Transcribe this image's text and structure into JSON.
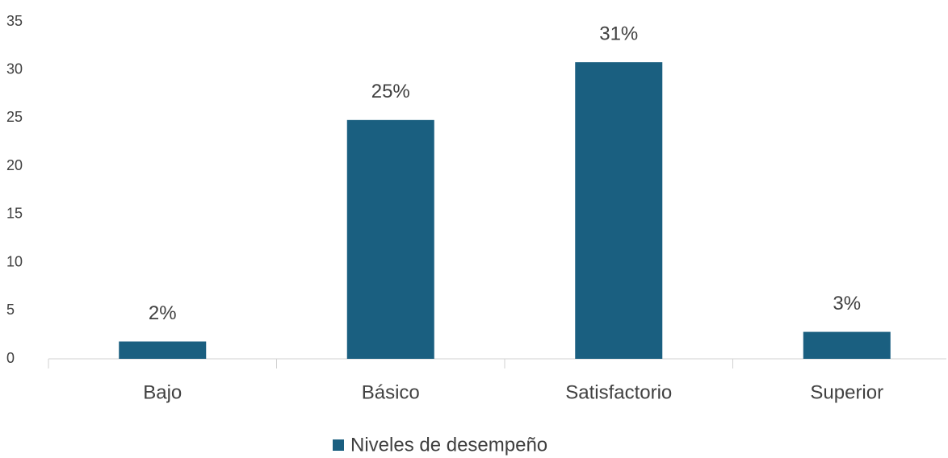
{
  "chart_data": {
    "type": "bar",
    "categories": [
      "Bajo",
      "Básico",
      "Satisfactorio",
      "Superior"
    ],
    "series": [
      {
        "name": "Niveles de desempeño",
        "color": "#1a5f80",
        "values": [
          1.8,
          24.8,
          30.8,
          2.8
        ],
        "value_labels": [
          "2%",
          "25%",
          "31%",
          "3%"
        ]
      }
    ],
    "ylim": [
      0,
      35
    ],
    "yticks": [
      0,
      5,
      10,
      15,
      20,
      25,
      30,
      35
    ],
    "grid": false,
    "legend": "bottom"
  }
}
